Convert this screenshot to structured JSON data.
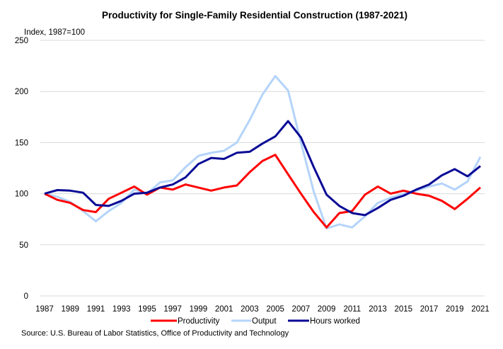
{
  "chart_data": {
    "type": "line",
    "title": "Productivity for Single-Family Residential Construction (1987-2021)",
    "ylabel": "Index, 1987=100",
    "xlabel": "",
    "ylim": [
      0,
      250
    ],
    "yticks": [
      0,
      50,
      100,
      150,
      200,
      250
    ],
    "xlim": [
      1987,
      2021
    ],
    "xticks": [
      1987,
      1989,
      1991,
      1993,
      1995,
      1997,
      1999,
      2001,
      2003,
      2005,
      2007,
      2009,
      2011,
      2013,
      2015,
      2017,
      2019,
      2021
    ],
    "grid": true,
    "legend_position": "bottom",
    "x": [
      1987,
      1988,
      1989,
      1990,
      1991,
      1992,
      1993,
      1994,
      1995,
      1996,
      1997,
      1998,
      1999,
      2000,
      2001,
      2002,
      2003,
      2004,
      2005,
      2006,
      2007,
      2008,
      2009,
      2010,
      2011,
      2012,
      2013,
      2014,
      2015,
      2016,
      2017,
      2018,
      2019,
      2020,
      2021
    ],
    "series": [
      {
        "name": "Productivity",
        "color": "#ff0000",
        "values": [
          100,
          94,
          91,
          84,
          82,
          95,
          101,
          107,
          99,
          106,
          104,
          109,
          106,
          103,
          106,
          108,
          121,
          132,
          138,
          119,
          100,
          82,
          67,
          81,
          83,
          99,
          107,
          100,
          103,
          100,
          98,
          93,
          85,
          95,
          106
        ]
      },
      {
        "name": "Output",
        "color": "#b4d4fa",
        "values": [
          100,
          97,
          92,
          83,
          73,
          83,
          91,
          104,
          100,
          111,
          113,
          126,
          137,
          140,
          142,
          150,
          172,
          197,
          215,
          201,
          150,
          102,
          66,
          70,
          67,
          78,
          91,
          96,
          100,
          103,
          107,
          110,
          104,
          112,
          136
        ]
      },
      {
        "name": "Hours worked",
        "color": "#0a0a96",
        "values": [
          100,
          103.5,
          103,
          101,
          89,
          88,
          93,
          100,
          101,
          106,
          109,
          116,
          129,
          135,
          134,
          140,
          141,
          149,
          156,
          171,
          155,
          126,
          99,
          88,
          81,
          79,
          86,
          94,
          98,
          104,
          109,
          118,
          124,
          117,
          127
        ]
      }
    ],
    "source": "Source:  U.S. Bureau of Labor Statistics, Office of Productivity and Technology"
  }
}
